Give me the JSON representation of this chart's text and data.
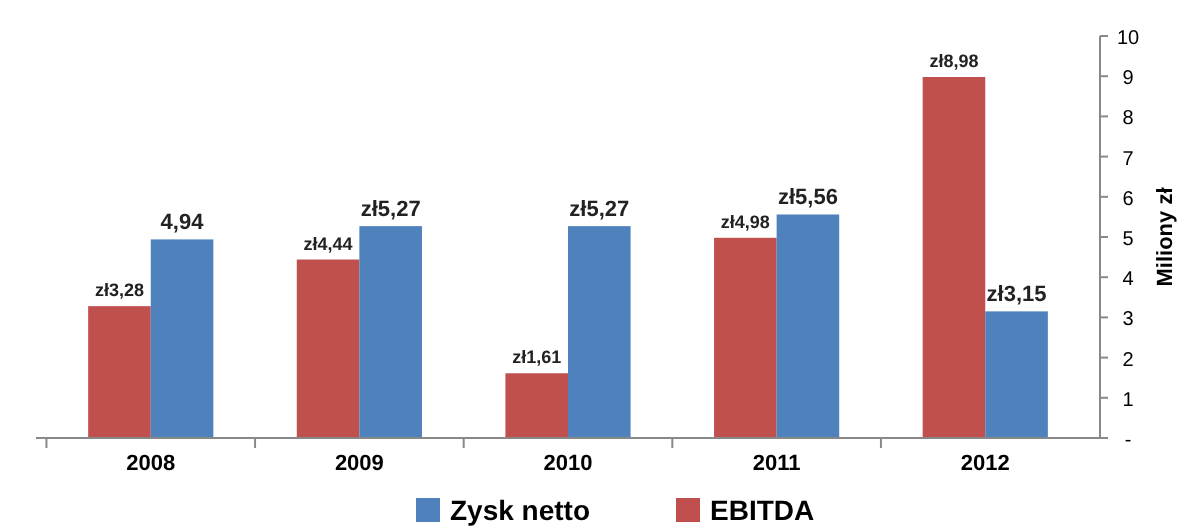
{
  "chart_data": {
    "type": "bar",
    "categories": [
      "2008",
      "2009",
      "2010",
      "2011",
      "2012"
    ],
    "series": [
      {
        "name": "EBITDA",
        "color": "#c0504d",
        "values": [
          3.28,
          4.44,
          1.61,
          4.98,
          8.98
        ],
        "value_labels": [
          "zł3,28",
          "zł4,44",
          "zł1,61",
          "zł4,98",
          "zł8,98"
        ]
      },
      {
        "name": "Zysk netto",
        "color": "#4f81bd",
        "values": [
          4.94,
          5.27,
          5.27,
          5.56,
          3.15
        ],
        "value_labels": [
          "4,94",
          "zł5,27",
          "zł5,27",
          "zł5,56",
          "zł3,15"
        ]
      }
    ],
    "ylabel": "Miliony zł",
    "ylim": [
      0,
      10
    ],
    "yticks": [
      {
        "value": 0,
        "label": "-"
      },
      1,
      2,
      3,
      4,
      5,
      6,
      7,
      8,
      9,
      10
    ],
    "legend": "bottom"
  }
}
